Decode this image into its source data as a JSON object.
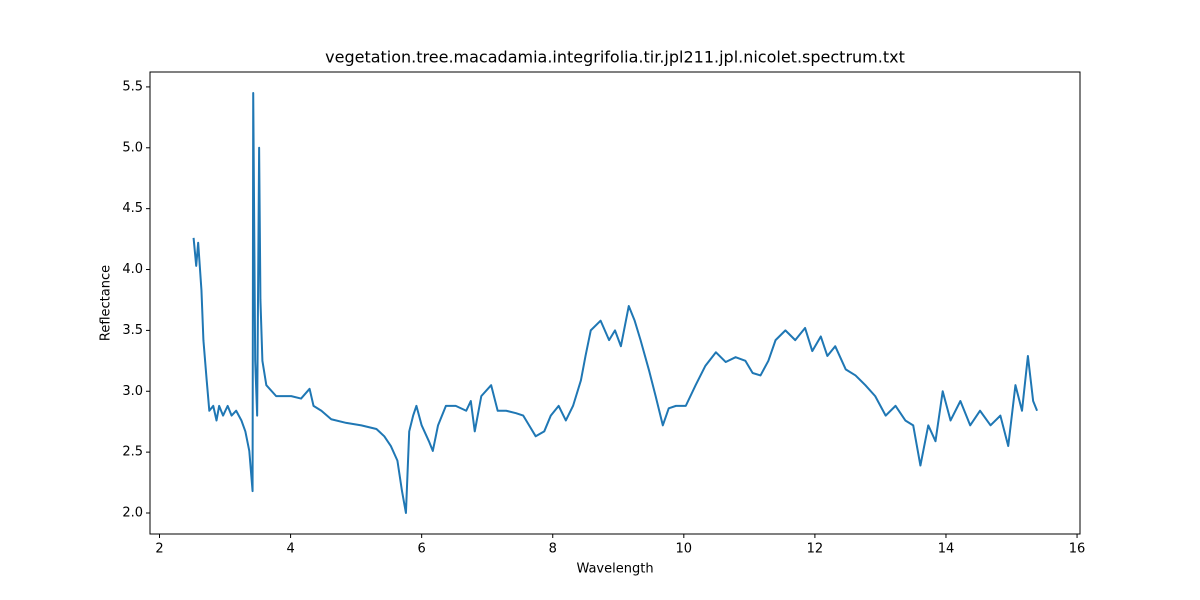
{
  "chart_data": {
    "type": "line",
    "title": "vegetation.tree.macadamia.integrifolia.tir.jpl211.jpl.nicolet.spectrum.txt",
    "x_label": "Wavelength",
    "y_label": "Reflectance",
    "xlim": [
      1.855,
      16.045
    ],
    "ylim": [
      1.8275,
      5.6225
    ],
    "xticks": [
      2,
      4,
      6,
      8,
      10,
      12,
      14,
      16
    ],
    "yticks": [
      {
        "value": 2.0,
        "label": "2.0"
      },
      2.5,
      {
        "value": 3.0,
        "label": "3.0"
      },
      3.5,
      {
        "value": 4.0,
        "label": "4.0"
      },
      4.5,
      {
        "value": 5.0,
        "label": "5.0"
      },
      5.5
    ],
    "series": [
      {
        "color": "#1f77b4",
        "x": [
          2.52,
          2.56,
          2.59,
          2.64,
          2.67,
          2.72,
          2.76,
          2.82,
          2.87,
          2.91,
          2.97,
          3.04,
          3.1,
          3.17,
          3.25,
          3.31,
          3.37,
          3.42,
          3.43,
          3.46,
          3.49,
          3.52,
          3.54,
          3.57,
          3.63,
          3.78,
          4.01,
          4.16,
          4.29,
          4.35,
          4.47,
          4.62,
          4.85,
          5.08,
          5.31,
          5.43,
          5.53,
          5.63,
          5.7,
          5.76,
          5.81,
          5.87,
          5.92,
          6.0,
          6.11,
          6.17,
          6.25,
          6.37,
          6.52,
          6.68,
          6.75,
          6.81,
          6.91,
          7.06,
          7.16,
          7.29,
          7.44,
          7.55,
          7.64,
          7.74,
          7.87,
          7.97,
          8.09,
          8.2,
          8.31,
          8.43,
          8.5,
          8.58,
          8.73,
          8.86,
          8.95,
          9.04,
          9.16,
          9.25,
          9.34,
          9.47,
          9.57,
          9.68,
          9.77,
          9.88,
          10.03,
          10.18,
          10.33,
          10.49,
          10.64,
          10.79,
          10.94,
          11.05,
          11.17,
          11.29,
          11.4,
          11.55,
          11.7,
          11.85,
          11.96,
          12.09,
          12.19,
          12.31,
          12.47,
          12.62,
          12.77,
          12.92,
          13.08,
          13.23,
          13.38,
          13.5,
          13.61,
          13.73,
          13.84,
          13.95,
          14.07,
          14.22,
          14.37,
          14.52,
          14.68,
          14.83,
          14.95,
          15.06,
          15.16,
          15.25,
          15.33,
          15.39
        ],
        "values": [
          4.26,
          4.03,
          4.22,
          3.83,
          3.42,
          3.09,
          2.84,
          2.88,
          2.76,
          2.88,
          2.8,
          2.88,
          2.8,
          2.84,
          2.76,
          2.67,
          2.51,
          2.18,
          5.45,
          3.25,
          2.8,
          5.0,
          3.75,
          3.25,
          3.05,
          2.96,
          2.96,
          2.94,
          3.02,
          2.88,
          2.84,
          2.77,
          2.74,
          2.72,
          2.69,
          2.63,
          2.55,
          2.43,
          2.18,
          2.0,
          2.67,
          2.8,
          2.88,
          2.72,
          2.59,
          2.51,
          2.72,
          2.88,
          2.88,
          2.84,
          2.92,
          2.67,
          2.96,
          3.05,
          2.84,
          2.84,
          2.82,
          2.8,
          2.72,
          2.63,
          2.67,
          2.8,
          2.88,
          2.76,
          2.88,
          3.09,
          3.29,
          3.5,
          3.58,
          3.42,
          3.5,
          3.37,
          3.7,
          3.58,
          3.42,
          3.17,
          2.96,
          2.72,
          2.86,
          2.88,
          2.88,
          3.05,
          3.21,
          3.32,
          3.24,
          3.28,
          3.25,
          3.15,
          3.13,
          3.25,
          3.42,
          3.5,
          3.42,
          3.52,
          3.33,
          3.45,
          3.29,
          3.37,
          3.18,
          3.13,
          3.05,
          2.96,
          2.8,
          2.88,
          2.76,
          2.72,
          2.39,
          2.72,
          2.59,
          3.0,
          2.76,
          2.92,
          2.72,
          2.84,
          2.72,
          2.8,
          2.55,
          3.05,
          2.84,
          3.29,
          2.92,
          2.84
        ]
      }
    ]
  }
}
